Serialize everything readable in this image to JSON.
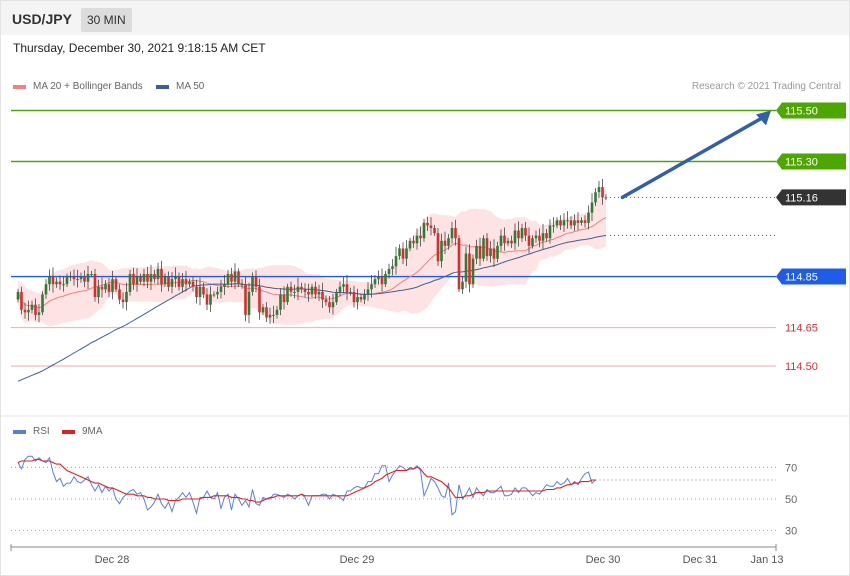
{
  "header": {
    "symbol": "USD/JPY",
    "interval": "30 MIN"
  },
  "datetime": "Thursday, December 30, 2021 9:18:15 AM CET",
  "credit": "Research © 2021 Trading Central",
  "colors": {
    "up": "#2e7d32",
    "down": "#d32f2f",
    "bands": "#fde3e3",
    "ma20": "#f08080",
    "ma50": "#3d5f99",
    "resistance": "#4ea600",
    "current": "#333333",
    "pivot": "#1f5de8",
    "support": "#d32f2f",
    "arrow": "#3160a8",
    "rsi": "#5b7fd6",
    "rsi_ma": "#e02020"
  },
  "chart_data": [
    {
      "type": "candlestick",
      "title": "",
      "legend": [
        {
          "name": "MA 20 + Bollinger Bands",
          "color": "#f08080"
        },
        {
          "name": "MA 50",
          "color": "#3d5f99"
        }
      ],
      "legend_placement": "top-left",
      "ylim": [
        114.32,
        115.58
      ],
      "x_ticks": [
        "Dec 28",
        "Dec 29",
        "Dec 30",
        "Dec 31",
        "Jan 13"
      ],
      "levels": [
        {
          "value": 115.5,
          "label": "115.50",
          "kind": "resistance"
        },
        {
          "value": 115.3,
          "label": "115.30",
          "kind": "resistance"
        },
        {
          "value": 115.16,
          "label": "115.16",
          "kind": "current"
        },
        {
          "value": 114.85,
          "label": "114.85",
          "kind": "pivot"
        },
        {
          "value": 114.65,
          "label": "114.65",
          "kind": "support"
        },
        {
          "value": 114.5,
          "label": "114.50",
          "kind": "support"
        }
      ],
      "closes": [
        114.79,
        114.72,
        114.71,
        114.72,
        114.74,
        114.7,
        114.71,
        114.78,
        114.82,
        114.85,
        114.82,
        114.83,
        114.82,
        114.82,
        114.85,
        114.85,
        114.84,
        114.84,
        114.85,
        114.83,
        114.86,
        114.86,
        114.77,
        114.81,
        114.8,
        114.82,
        114.79,
        114.84,
        114.8,
        114.76,
        114.75,
        114.79,
        114.86,
        114.82,
        114.85,
        114.83,
        114.86,
        114.83,
        114.86,
        114.84,
        114.88,
        114.82,
        114.85,
        114.81,
        114.84,
        114.85,
        114.81,
        114.84,
        114.82,
        114.83,
        114.81,
        114.77,
        114.81,
        114.78,
        114.74,
        114.78,
        114.78,
        114.79,
        114.81,
        114.82,
        114.86,
        114.83,
        114.87,
        114.82,
        114.82,
        114.7,
        114.79,
        114.85,
        114.81,
        114.71,
        114.73,
        114.69,
        114.7,
        114.7,
        114.72,
        114.78,
        114.75,
        114.81,
        114.79,
        114.79,
        114.81,
        114.8,
        114.79,
        114.78,
        114.81,
        114.78,
        114.79,
        114.76,
        114.75,
        114.73,
        114.75,
        114.79,
        114.81,
        114.82,
        114.79,
        114.79,
        114.75,
        114.77,
        114.76,
        114.78,
        114.8,
        114.82,
        114.84,
        114.85,
        114.82,
        114.86,
        114.88,
        114.89,
        114.93,
        114.96,
        114.92,
        114.96,
        114.99,
        114.98,
        115.01,
        115.0,
        115.06,
        115.05,
        115.04,
        115.02,
        114.91,
        114.99,
        114.97,
        115.0,
        115.04,
        115.0,
        114.8,
        114.83,
        114.94,
        114.82,
        114.92,
        114.97,
        114.92,
        115.0,
        114.93,
        114.96,
        114.92,
        114.97,
        115.01,
        114.98,
        114.99,
        114.98,
        115.03,
        115.0,
        115.04,
        115.01,
        114.97,
        115.0,
        115.01,
        114.99,
        115.02,
        115.0,
        115.05,
        115.05,
        115.07,
        115.05,
        115.07,
        115.07,
        115.05,
        115.07,
        115.06,
        115.07,
        115.06,
        115.1,
        115.14,
        115.18,
        115.2,
        115.16,
        115.16
      ],
      "ma50_range": [
        114.44,
        115.02
      ],
      "annotation": {
        "type": "arrow",
        "from_index": 171,
        "from_value": 115.16,
        "to_value": 115.5
      }
    },
    {
      "type": "line",
      "title": "",
      "legend": [
        {
          "name": "RSI",
          "color": "#5b7fd6"
        },
        {
          "name": "9MA",
          "color": "#e02020"
        }
      ],
      "y_ticks": [
        30,
        50,
        70
      ],
      "ylim": [
        19,
        86
      ],
      "rsi": [
        73,
        69,
        75,
        77,
        77,
        74,
        76,
        74,
        73,
        76,
        67,
        61,
        63,
        58,
        60,
        60,
        64,
        61,
        60,
        62,
        64,
        59,
        55,
        59,
        54,
        58,
        55,
        57,
        50,
        47,
        51,
        53,
        55,
        56,
        53,
        54,
        50,
        43,
        45,
        48,
        53,
        47,
        44,
        48,
        42,
        49,
        51,
        54,
        51,
        54,
        48,
        41,
        51,
        51,
        55,
        51,
        50,
        54,
        44,
        51,
        53,
        43,
        53,
        50,
        46,
        49,
        45,
        56,
        47,
        46,
        51,
        50,
        50,
        53,
        53,
        52,
        51,
        53,
        52,
        50,
        52,
        53,
        51,
        46,
        52,
        52,
        52,
        53,
        53,
        50,
        53,
        52,
        51,
        49,
        55,
        55,
        57,
        58,
        57,
        57,
        61,
        61,
        66,
        66,
        71,
        71,
        61,
        65,
        68,
        71,
        70,
        68,
        70,
        69,
        71,
        68,
        52,
        57,
        63,
        61,
        57,
        52,
        51,
        60,
        40,
        42,
        59,
        50,
        53,
        57,
        51,
        57,
        54,
        52,
        56,
        54,
        54,
        56,
        58,
        52,
        52,
        53,
        57,
        54,
        57,
        57,
        55,
        52,
        54,
        53,
        56,
        59,
        58,
        58,
        61,
        59,
        60,
        63,
        59,
        61,
        59,
        63,
        66,
        67,
        60,
        62
      ],
      "rsi_ma": [
        73,
        74,
        74,
        74,
        74,
        75,
        75,
        74,
        74,
        74,
        73,
        72,
        72,
        70,
        68,
        67,
        66,
        65,
        64,
        63,
        62,
        61,
        60,
        60,
        59,
        58,
        57,
        57,
        56,
        55,
        54,
        53,
        53,
        53,
        52,
        52,
        52,
        51,
        51,
        50,
        50,
        50,
        50,
        49,
        49,
        49,
        49,
        50,
        50,
        50,
        50,
        50,
        50,
        51,
        51,
        51,
        52,
        52,
        52,
        52,
        52,
        51,
        51,
        51,
        50,
        50,
        49,
        49,
        48,
        48,
        49,
        50,
        51,
        51,
        52,
        52,
        52,
        52,
        52,
        52,
        52,
        53,
        52,
        52,
        52,
        52,
        52,
        52,
        52,
        52,
        52,
        52,
        52,
        52,
        52,
        53,
        54,
        55,
        56,
        57,
        58,
        59,
        61,
        62,
        63,
        65,
        66,
        67,
        68,
        68,
        68,
        68,
        69,
        69,
        70,
        69,
        66,
        64,
        64,
        63,
        62,
        61,
        59,
        57,
        54,
        51,
        51,
        51,
        52,
        52,
        53,
        54,
        54,
        54,
        55,
        55,
        55,
        55,
        55,
        55,
        55,
        55,
        55,
        55,
        55,
        55,
        55,
        55,
        55,
        55,
        55,
        56,
        56,
        56,
        57,
        57,
        58,
        59,
        59,
        60,
        60,
        61,
        61,
        61,
        62,
        62
      ]
    }
  ]
}
